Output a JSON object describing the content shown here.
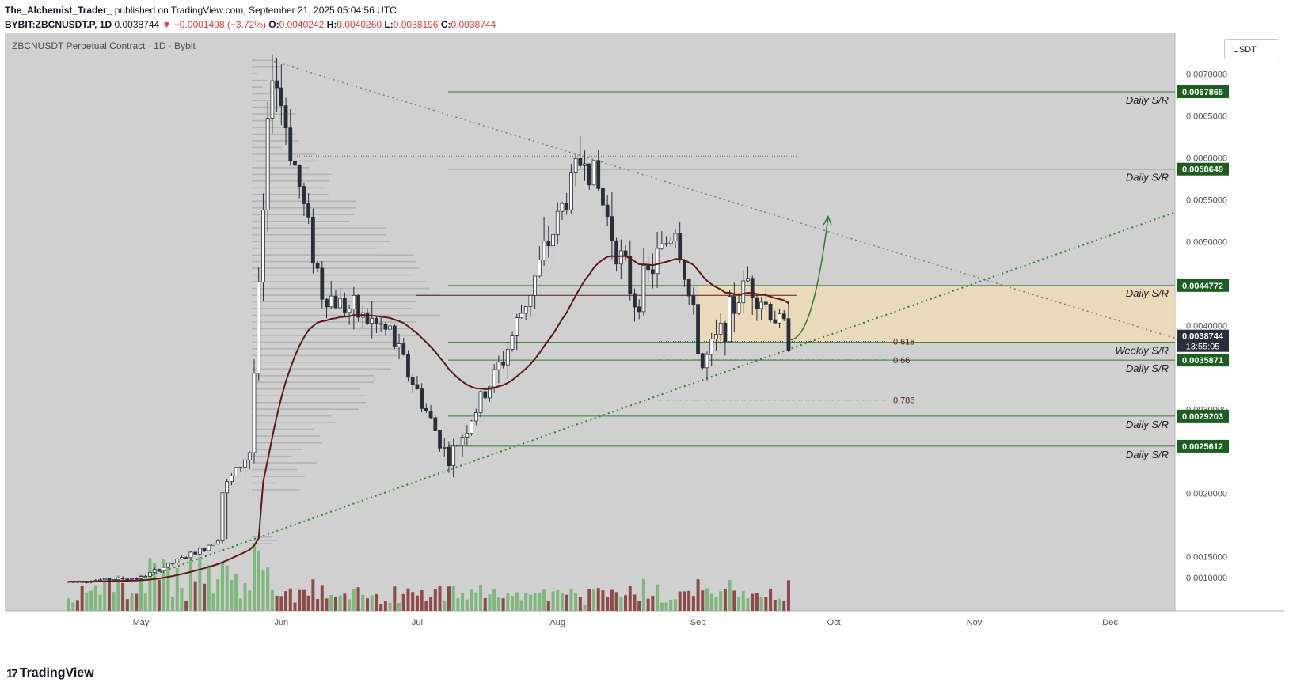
{
  "header": {
    "author": "The_Alchemist_Trader_",
    "published": "published on TradingView.com, September 21, 2025 05:04:56 UTC",
    "symbol": "BYBIT:ZBCNUSDT.P, 1D",
    "last": "0.0038744",
    "change": "−0.0001498 (−3.72%)",
    "open_label": "O:",
    "open": "0.0040242",
    "high_label": "H:",
    "high": "0.0040260",
    "low_label": "L:",
    "low": "0.0038196",
    "close_label": "C:",
    "close": "0.0038744"
  },
  "chart_title": "ZBCNUSDT Perpetual Contract · 1D · Bybit",
  "currency_button": "USDT",
  "footer": {
    "brand": "TradingView",
    "mark": "17"
  },
  "colors": {
    "plot_bg": "#d0d0d0",
    "up": "#ffffff",
    "down": "#2a2e39",
    "sr_line": "#2e7d32",
    "sr_badge": "#1b5e20",
    "ma": "#5d1a1a",
    "zone": "#f5deb3",
    "vol_up": "#7fb77e",
    "vol_down": "#8e4a4a",
    "vol_ma": "#f5a623",
    "trendline": "#2e7d32",
    "resistance_line": "#7a7a7a"
  },
  "chart_data": {
    "type": "candlestick",
    "title": "ZBCNUSDT Perpetual Contract · 1D · Bybit",
    "y_axis_ticks": [
      "0.0070000",
      "0.0065000",
      "0.0060000",
      "0.0055000",
      "0.0050000",
      "0.0040000",
      "0.0030000",
      "0.0020000",
      "0.0015000",
      "0.0010000"
    ],
    "x_axis_labels": [
      "May",
      "Jun",
      "Jul",
      "Aug",
      "Sep",
      "Oct",
      "Nov",
      "Dec"
    ],
    "sr_levels": [
      {
        "value": "0.0067865",
        "price": 0.0067865,
        "label": "Daily S/R"
      },
      {
        "value": "0.0058649",
        "price": 0.0058649,
        "label": "Daily S/R"
      },
      {
        "value": "0.0044772",
        "price": 0.0044772,
        "label": "Daily S/R"
      },
      {
        "value": "0.0037992",
        "price": 0.0037992,
        "label": "Weekly S/R"
      },
      {
        "value": "0.0035871",
        "price": 0.0035871,
        "label": "Daily S/R"
      },
      {
        "value": "0.0029203",
        "price": 0.0029203,
        "label": "Daily S/R"
      },
      {
        "value": "0.0025612",
        "price": 0.0025612,
        "label": "Daily S/R"
      }
    ],
    "current_price": {
      "value": "0.0038744",
      "price": 0.0038744,
      "countdown": "13:55:05"
    },
    "fib_levels": [
      {
        "label": "0.618",
        "price": 0.00381
      },
      {
        "label": "0.66",
        "price": 0.00359
      },
      {
        "label": "0.786",
        "price": 0.00311
      }
    ],
    "ohlc_key_points": [
      {
        "date": "2025-04-15",
        "price": 0.0009
      },
      {
        "date": "2025-05-01",
        "price": 0.001
      },
      {
        "date": "2025-05-15",
        "price": 0.0017
      },
      {
        "date": "2025-05-25",
        "price": 0.0025
      },
      {
        "date": "2025-05-30",
        "price": 0.00715
      },
      {
        "date": "2025-06-10",
        "price": 0.0044
      },
      {
        "date": "2025-06-25",
        "price": 0.0039
      },
      {
        "date": "2025-07-08",
        "price": 0.0024
      },
      {
        "date": "2025-07-20",
        "price": 0.0036
      },
      {
        "date": "2025-08-07",
        "price": 0.0061
      },
      {
        "date": "2025-08-18",
        "price": 0.0043
      },
      {
        "date": "2025-08-27",
        "price": 0.0052
      },
      {
        "date": "2025-09-02",
        "price": 0.0035
      },
      {
        "date": "2025-09-12",
        "price": 0.00455
      },
      {
        "date": "2025-09-21",
        "price": 0.0038744
      }
    ]
  }
}
